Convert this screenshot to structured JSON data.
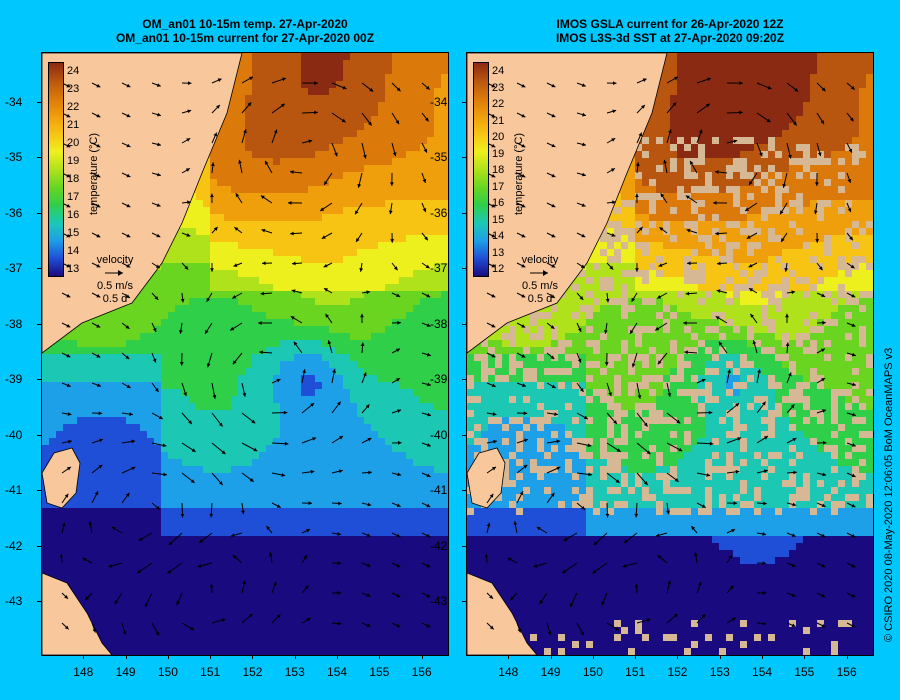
{
  "titles": {
    "left": [
      "OM_an01 10-15m temp. 27-Apr-2020",
      "OM_an01 10-15m current for 27-Apr-2020 00Z"
    ],
    "right": [
      "IMOS GSLA current for 26-Apr-2020 12Z",
      "IMOS L3S-3d SST at 27-Apr-2020 09:20Z"
    ]
  },
  "axes": {
    "lat_ticks": [
      "-34",
      "-35",
      "-36",
      "-37",
      "-38",
      "-39",
      "-40",
      "-41",
      "-42",
      "-43"
    ],
    "lon_ticks": [
      "148",
      "149",
      "150",
      "151",
      "152",
      "153",
      "154",
      "155",
      "156"
    ],
    "lat_range": [
      -43.95,
      -33.1
    ],
    "lon_range": [
      147.0,
      156.6
    ]
  },
  "colorbar": {
    "left_labels": [
      "24",
      "23",
      "22",
      "21",
      "20",
      "19",
      "18",
      "17",
      "16",
      "15",
      "14",
      "13"
    ],
    "right_labels": [
      "24",
      "23",
      "22",
      "21",
      "20",
      "19",
      "18",
      "17",
      "16",
      "15",
      "14",
      "13",
      "12"
    ],
    "title": "temperature (°C)",
    "colors": [
      "#1a0a80",
      "#1f4fd6",
      "#1ea0e8",
      "#1cc8b4",
      "#2fcf4a",
      "#69d521",
      "#b0e21b",
      "#eef01e",
      "#f7c414",
      "#ef9e0c",
      "#db7a0a",
      "#b8560f",
      "#8b2a12"
    ]
  },
  "velocity_legend": {
    "label": "velocity",
    "speed": "0.5 m/s",
    "time": "0.5 d"
  },
  "credit": "© CSIRO 2020   08-May-2020 12:06:05 BoM OceanMAPS v3"
}
